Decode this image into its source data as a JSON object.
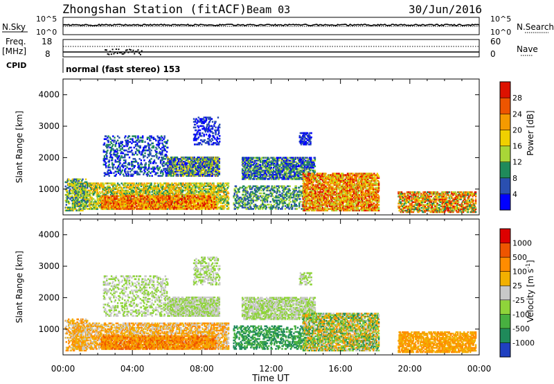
{
  "header": {
    "station": "Zhongshan Station (fitACF)",
    "beam": "Beam 03",
    "date": "30/Jun/2016"
  },
  "housekeeping": {
    "nsky_label": "N.Sky",
    "nsearch_label": "N.Search",
    "nsky_ticks": [
      "10^5",
      "10^0"
    ],
    "nsearch_ticks": [
      "10^5",
      "10^0"
    ],
    "freq_label": "Freq.",
    "freq_unit": "[MHz]",
    "freq_ticks": [
      "18",
      "8"
    ],
    "nave_label": "Nave",
    "nave_ticks": [
      "60",
      "0"
    ],
    "cpid_label": "CPID",
    "cpid_text": "normal (fast stereo) 153"
  },
  "chart_data": [
    {
      "type": "heatmap",
      "panel": "power",
      "ylabel": "Slant Range [km]",
      "xlabel": "",
      "ylim": [
        180,
        4500
      ],
      "yticks": [
        "4000",
        "3000",
        "2000",
        "1000"
      ],
      "xlim_hours": [
        0,
        24
      ],
      "colorbar": {
        "label": "Power [dB]",
        "ticks": [
          "28",
          "24",
          "20",
          "16",
          "12",
          "8",
          "4"
        ],
        "colors": [
          "#0000ff",
          "#2a4fb0",
          "#1f8a5a",
          "#a9d637",
          "#f0d000",
          "#f59a00",
          "#ee5500",
          "#dd1100"
        ]
      }
    },
    {
      "type": "heatmap",
      "panel": "velocity",
      "ylabel": "Slant Range [km]",
      "xlabel": "Time UT",
      "ylim": [
        180,
        4500
      ],
      "yticks": [
        "4000",
        "3000",
        "2000",
        "1000"
      ],
      "xticks": [
        "00:00",
        "04:00",
        "08:00",
        "12:00",
        "16:00",
        "20:00",
        "00:00"
      ],
      "xlim_hours": [
        0,
        24
      ],
      "colorbar": {
        "label": "Velocity [m s",
        "label_sup": "-1",
        "label_end": "]",
        "ticks": [
          "1000",
          "500",
          "100",
          "25",
          "-25",
          "-100",
          "-500",
          "-1000"
        ],
        "colors": [
          "#2040c0",
          "#1f8a5a",
          "#48b040",
          "#8fd43a",
          "#c8c8c8",
          "#f2b000",
          "#ff8c00",
          "#ee5500",
          "#dd0000"
        ]
      }
    }
  ]
}
